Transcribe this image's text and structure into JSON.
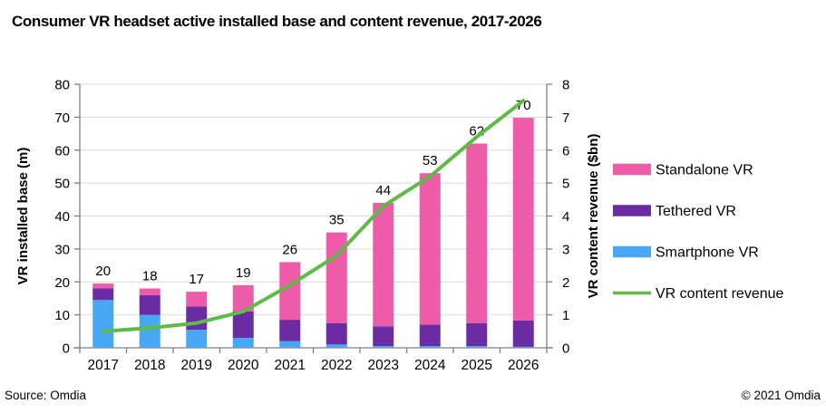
{
  "title": "Consumer VR headset active installed base and content revenue, 2017-2026",
  "footer": {
    "source": "Source: Omdia",
    "copyright": "© 2021 Omdia"
  },
  "chart_data": {
    "type": "bar",
    "subtype": "stacked-bars-with-line",
    "categories": [
      "2017",
      "2018",
      "2019",
      "2020",
      "2021",
      "2022",
      "2023",
      "2024",
      "2025",
      "2026"
    ],
    "bar_series": [
      {
        "name": "Smartphone VR",
        "color": "#47A7F2",
        "values": [
          14.5,
          10,
          5.5,
          3,
          2,
          1,
          0.5,
          0.5,
          0.5,
          0.3
        ]
      },
      {
        "name": "Tethered VR",
        "color": "#6B2BA3",
        "values": [
          3.5,
          6,
          7,
          8,
          6.5,
          6.5,
          6,
          6.5,
          7,
          8
        ]
      },
      {
        "name": "Standalone VR",
        "color": "#EE5BA8",
        "values": [
          1.5,
          2,
          4.5,
          8,
          17.5,
          27.5,
          37.5,
          46,
          54.5,
          61.5
        ]
      }
    ],
    "bar_total_labels": [
      "20",
      "18",
      "17",
      "19",
      "26",
      "35",
      "44",
      "53",
      "62",
      "70"
    ],
    "line_series": {
      "name": "VR content revenue",
      "color": "#5DBB46",
      "values": [
        0.5,
        0.6,
        0.75,
        1.1,
        1.9,
        2.8,
        4.3,
        5.2,
        6.4,
        7.5
      ]
    },
    "left_axis": {
      "title": "VR installed base (m)",
      "min": 0,
      "max": 80,
      "step": 10,
      "ticks": [
        "0",
        "10",
        "20",
        "30",
        "40",
        "50",
        "60",
        "70",
        "80"
      ]
    },
    "right_axis": {
      "title": "VR content revenue ($bn)",
      "min": 0,
      "max": 8,
      "step": 1,
      "ticks": [
        "0",
        "1",
        "2",
        "3",
        "4",
        "5",
        "6",
        "7",
        "8"
      ]
    },
    "grid": true,
    "legend_position": "right",
    "legend": {
      "items": [
        {
          "label": "Standalone VR",
          "color": "#EE5BA8",
          "type": "box"
        },
        {
          "label": "Tethered VR",
          "color": "#6B2BA3",
          "type": "box"
        },
        {
          "label": "Smartphone VR",
          "color": "#47A7F2",
          "type": "box"
        },
        {
          "label": "VR content revenue",
          "color": "#5DBB46",
          "type": "line"
        }
      ]
    },
    "colors": {
      "gridline": "#D9D9D9",
      "axis": "#7F7F7F",
      "text": "#000000"
    }
  }
}
